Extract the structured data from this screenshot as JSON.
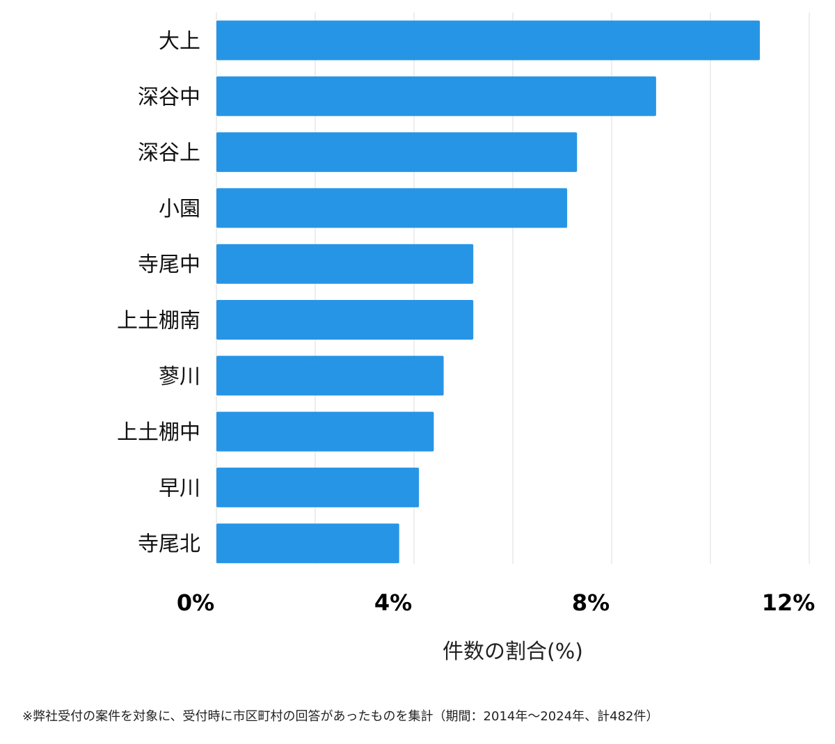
{
  "chart_data": {
    "type": "bar",
    "orientation": "horizontal",
    "categories": [
      "大上",
      "深谷中",
      "深谷上",
      "小園",
      "寺尾中",
      "上土棚南",
      "蓼川",
      "上土棚中",
      "早川",
      "寺尾北"
    ],
    "values": [
      11.0,
      8.9,
      7.3,
      7.1,
      5.2,
      5.2,
      4.6,
      4.4,
      4.1,
      3.7
    ],
    "xlabel": "件数の割合(%)",
    "xlim": [
      0,
      12
    ],
    "xticks": [
      0,
      4,
      8,
      12
    ],
    "xtick_labels": [
      "0%",
      "4%",
      "8%",
      "12%"
    ],
    "minor_gridlines": [
      2,
      6,
      10
    ],
    "grid": true,
    "bar_color": "#2795e6"
  },
  "footnote": "※弊社受付の案件を対象に、受付時に市区町村の回答があったものを集計（期間：2014年～2024年、計482件）"
}
